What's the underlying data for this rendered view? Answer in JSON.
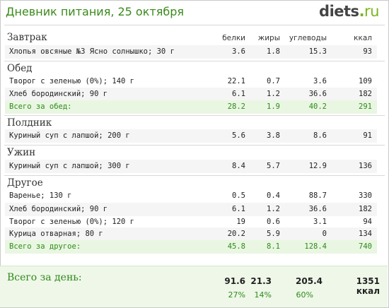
{
  "header": {
    "title": "Дневник питания, 25 октября",
    "logo_main": "diets",
    "logo_dot": ".",
    "logo_tld": "ru"
  },
  "columns": [
    "белки",
    "жиры",
    "углеводы",
    "ккал"
  ],
  "meals": {
    "breakfast": {
      "name": "Завтрак",
      "items": [
        {
          "name": "Хлопья овсяные №3 Ясно солнышко; 30 г",
          "protein": "3.6",
          "fat": "1.8",
          "carbs": "15.3",
          "kcal": "93"
        }
      ]
    },
    "lunch": {
      "name": "Обед",
      "items": [
        {
          "name": "Творог с зеленью (0%); 140 г",
          "protein": "22.1",
          "fat": "0.7",
          "carbs": "3.6",
          "kcal": "109"
        },
        {
          "name": "Хлеб бородинский; 90 г",
          "protein": "6.1",
          "fat": "1.2",
          "carbs": "36.6",
          "kcal": "182"
        }
      ],
      "total": {
        "label": "Всего за обед:",
        "protein": "28.2",
        "fat": "1.9",
        "carbs": "40.2",
        "kcal": "291"
      }
    },
    "snack": {
      "name": "Полдник",
      "items": [
        {
          "name": "Куриный суп с лапшой; 200 г",
          "protein": "5.6",
          "fat": "3.8",
          "carbs": "8.6",
          "kcal": "91"
        }
      ]
    },
    "dinner": {
      "name": "Ужин",
      "items": [
        {
          "name": "Куриный суп с лапшой; 300 г",
          "protein": "8.4",
          "fat": "5.7",
          "carbs": "12.9",
          "kcal": "136"
        }
      ]
    },
    "other": {
      "name": "Другое",
      "items": [
        {
          "name": "Варенье; 130 г",
          "protein": "0.5",
          "fat": "0.4",
          "carbs": "88.7",
          "kcal": "330"
        },
        {
          "name": "Хлеб бородинский; 90 г",
          "protein": "6.1",
          "fat": "1.2",
          "carbs": "36.6",
          "kcal": "182"
        },
        {
          "name": "Творог с зеленью (0%); 120 г",
          "protein": "19",
          "fat": "0.6",
          "carbs": "3.1",
          "kcal": "94"
        },
        {
          "name": "Курица отварная; 80 г",
          "protein": "20.2",
          "fat": "5.9",
          "carbs": "0",
          "kcal": "134"
        }
      ],
      "total": {
        "label": "Всего за другое:",
        "protein": "45.8",
        "fat": "8.1",
        "carbs": "128.4",
        "kcal": "740"
      }
    }
  },
  "day_total": {
    "label": "Всего за день:",
    "protein": "91.6",
    "fat": "21.3",
    "carbs": "205.4",
    "kcal": "1351 ккал",
    "protein_pct": "27%",
    "fat_pct": "14%",
    "carbs_pct": "60%"
  }
}
